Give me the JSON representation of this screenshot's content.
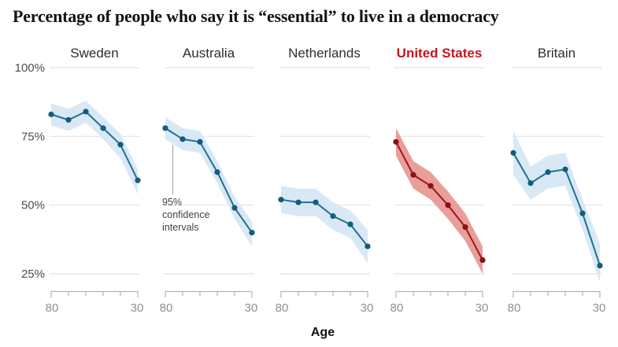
{
  "page_title": "Percentage of people who say it is “essential” to live in a democracy",
  "chart_data": {
    "type": "line",
    "title": "Percentage of people who say it is “essential” to live in a democracy",
    "xlabel": "Age",
    "x_ages": [
      80,
      70,
      60,
      50,
      40,
      30
    ],
    "x_axis_end_labels": [
      "80",
      "30"
    ],
    "x_reversed": true,
    "y_ticks": [
      100,
      75,
      50,
      25
    ],
    "y_tick_labels": [
      "100%",
      "75%",
      "50%",
      "25%"
    ],
    "ylim": [
      25,
      100
    ],
    "grid": true,
    "legend_position": "none",
    "panels": [
      {
        "title": "Sweden",
        "highlight": false,
        "values": [
          83,
          81,
          84,
          78,
          72,
          59
        ],
        "ci_upper": [
          87,
          85,
          88,
          82,
          76,
          63
        ],
        "ci_lower": [
          79,
          77,
          80,
          74,
          67,
          54
        ]
      },
      {
        "title": "Australia",
        "highlight": false,
        "values": [
          78,
          74,
          73,
          62,
          49,
          40
        ],
        "ci_upper": [
          82,
          78,
          77,
          66,
          53,
          44
        ],
        "ci_lower": [
          74,
          70,
          69,
          58,
          45,
          35
        ]
      },
      {
        "title": "Netherlands",
        "highlight": false,
        "values": [
          52,
          51,
          51,
          46,
          43,
          35
        ],
        "ci_upper": [
          57,
          56,
          56,
          51,
          48,
          41
        ],
        "ci_lower": [
          47,
          46,
          46,
          41,
          38,
          29
        ]
      },
      {
        "title": "United States",
        "highlight": true,
        "values": [
          73,
          61,
          57,
          50,
          42,
          30
        ],
        "ci_upper": [
          78,
          66,
          62,
          55,
          47,
          35
        ],
        "ci_lower": [
          68,
          56,
          52,
          45,
          37,
          25
        ]
      },
      {
        "title": "Britain",
        "highlight": false,
        "values": [
          69,
          58,
          62,
          63,
          47,
          28
        ],
        "ci_upper": [
          77,
          64,
          68,
          69,
          52,
          36
        ],
        "ci_lower": [
          61,
          52,
          56,
          57,
          41,
          22
        ]
      }
    ],
    "annotation": {
      "text_lines": [
        "95%",
        "confidence",
        "intervals"
      ]
    },
    "colors": {
      "line": "#1d7291",
      "dot": "#135c7d",
      "band": "#d9e8f5",
      "highlight_line": "#9e151b",
      "highlight_dot": "#8a1016",
      "highlight_band": "#e99e9a",
      "highlight_title": "#c4161c",
      "panel_title": "#2e2e2e",
      "grid": "#e2e2e2",
      "axis": "#b5b5b5",
      "axis_label": "#8f8f8f",
      "y_label": "#4d4d4d",
      "annotation_text": "#424242",
      "annotation_line": "#aaaaaa",
      "title_text": "#131313"
    }
  }
}
